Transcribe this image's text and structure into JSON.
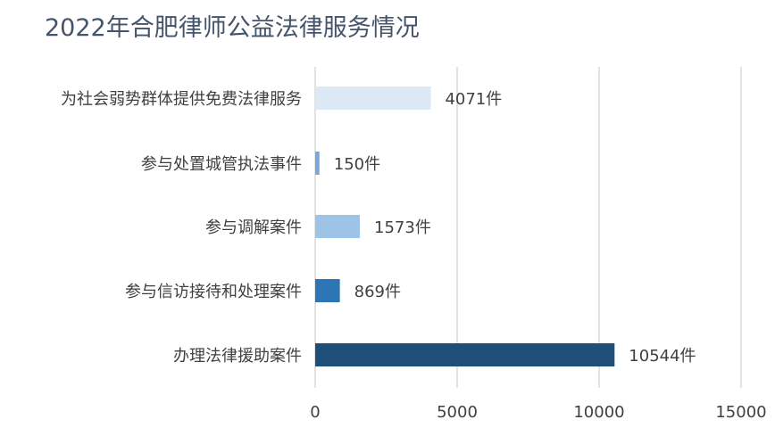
{
  "chart_data": {
    "type": "bar",
    "orientation": "horizontal",
    "title": "2022年合肥律师公益法律服务情况",
    "xlabel": "",
    "ylabel": "",
    "categories": [
      "为社会弱势群体提供免费法律服务",
      "参与处置城管执法事件",
      "参与调解案件",
      "参与信访接待和处理案件",
      "办理法律援助案件"
    ],
    "values": [
      4071,
      150,
      1573,
      869,
      10544
    ],
    "value_labels": [
      "4071件",
      "150件",
      "1573件",
      "869件",
      "10544件"
    ],
    "bar_colors": [
      "#dde8f5",
      "#7aa8d8",
      "#9dc3e6",
      "#2e75b6",
      "#1f4e79"
    ],
    "xlim": [
      0,
      15000
    ],
    "x_ticks": [
      0,
      5000,
      10000,
      15000
    ],
    "x_tick_labels": [
      "0",
      "5000",
      "10000",
      "15000"
    ],
    "grid": true,
    "legend": "none"
  }
}
